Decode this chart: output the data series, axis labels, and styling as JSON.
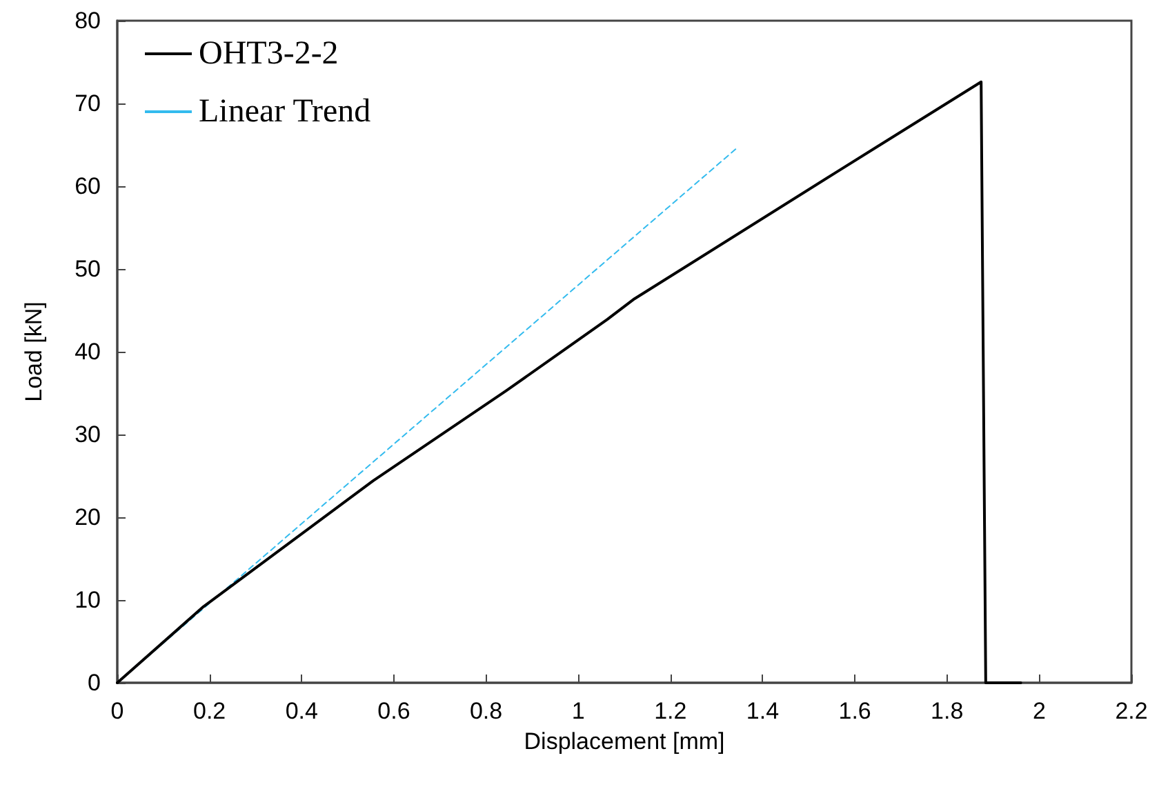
{
  "chart_data": {
    "type": "line",
    "xlabel": "Displacement [mm]",
    "ylabel": "Load [kN]",
    "xlim": [
      0,
      2.2
    ],
    "xticks": [
      0,
      0.2,
      0.4,
      0.6,
      0.8,
      1,
      1.2,
      1.4,
      1.6,
      1.8,
      2,
      2.2
    ],
    "ylim": [
      0,
      80
    ],
    "yticks": [
      0,
      10,
      20,
      30,
      40,
      50,
      60,
      70,
      80
    ],
    "grid": false,
    "legend": "top left",
    "marker": "none",
    "series": [
      {
        "name": "OHT3-2-2",
        "color": "#000000",
        "line_style": "solid",
        "x": [
          0,
          0.187,
          0.555,
          0.844,
          1.063,
          1.122,
          1.56,
          1.874,
          1.884,
          1.96
        ],
        "values": [
          0,
          9.2,
          24.4,
          35.3,
          43.9,
          46.4,
          61.7,
          72.6,
          0,
          0
        ]
      },
      {
        "name": "Linear Trend",
        "color": "#33bbee",
        "line_style": "dashed",
        "x": [
          0,
          1.346
        ],
        "values": [
          0,
          64.7
        ]
      }
    ]
  }
}
